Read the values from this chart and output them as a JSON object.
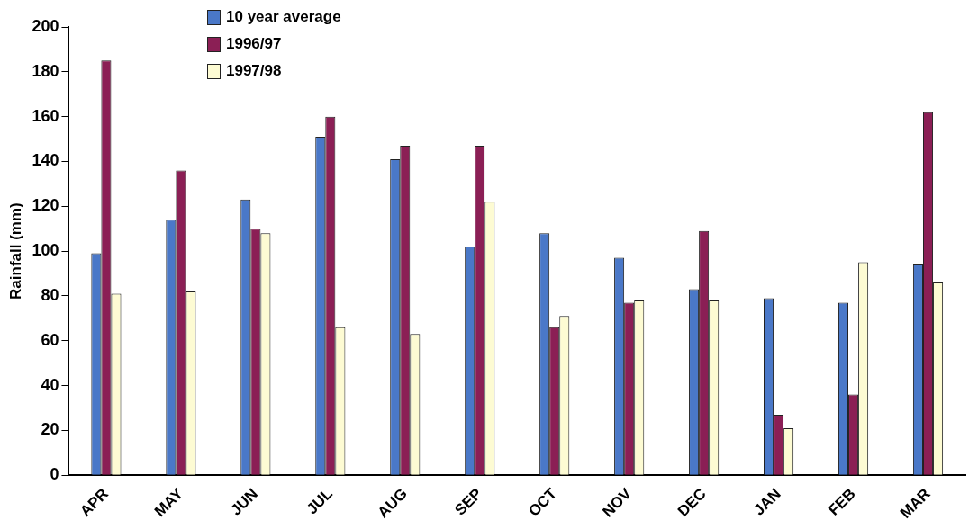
{
  "chart_data": {
    "type": "bar",
    "ylabel": "Rainfall (mm)",
    "categories": [
      "APR",
      "MAY",
      "JUN",
      "JUL",
      "AUG",
      "SEP",
      "OCT",
      "NOV",
      "DEC",
      "JAN",
      "FEB",
      "MAR"
    ],
    "series": [
      {
        "name": "10 year average",
        "color": "#4a78c8",
        "values": [
          99,
          114,
          123,
          151,
          141,
          102,
          108,
          97,
          83,
          79,
          77,
          94
        ]
      },
      {
        "name": "1996/97",
        "color": "#8b1f55",
        "values": [
          185,
          136,
          110,
          160,
          147,
          147,
          66,
          77,
          109,
          27,
          36,
          162
        ]
      },
      {
        "name": "1997/98",
        "color": "#fdfbd3",
        "values": [
          81,
          82,
          108,
          66,
          63,
          122,
          71,
          78,
          78,
          21,
          95,
          86
        ]
      }
    ],
    "ylim": [
      0,
      200
    ],
    "yticks": [
      0,
      20,
      40,
      60,
      80,
      100,
      120,
      140,
      160,
      180,
      200
    ],
    "grid": false,
    "legend": "top left"
  }
}
